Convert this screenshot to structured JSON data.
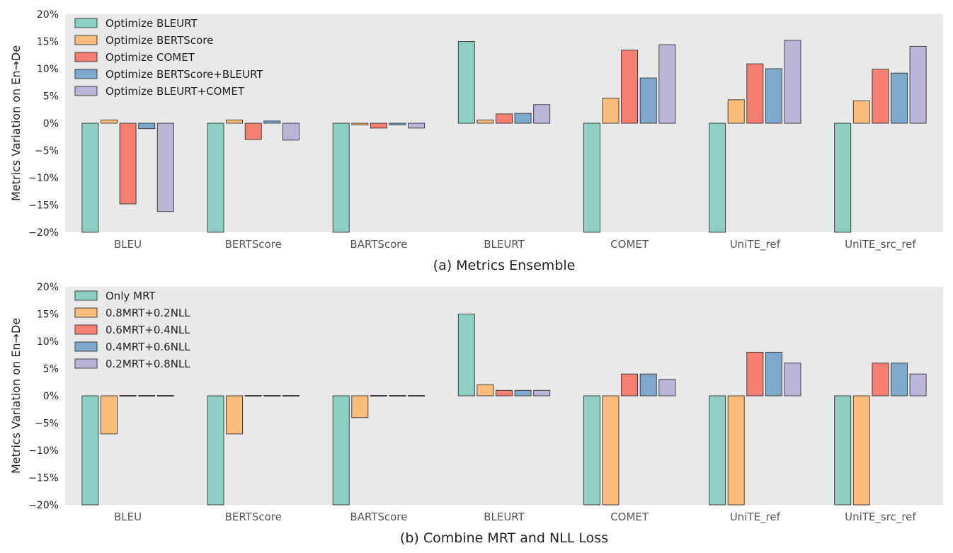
{
  "chart_data": [
    {
      "type": "bar",
      "caption": "(a) Metrics Ensemble",
      "ylabel": "Metrics Variation on En→De",
      "xlabel": "",
      "ylim": [
        -20,
        20
      ],
      "yticks": [
        "−20%",
        "−15%",
        "−10%",
        "−5%",
        "0%",
        "5%",
        "10%",
        "15%",
        "20%"
      ],
      "categories": [
        "BLEU",
        "BERTScore",
        "BARTScore",
        "BLEURT",
        "COMET",
        "UniTE_ref",
        "UniTE_src_ref"
      ],
      "legend_position": "top-left",
      "grid": false,
      "series": [
        {
          "name": "Optimize BLEURT",
          "color": "#8fd0c4",
          "values": [
            -20,
            -20,
            -20,
            15,
            -20,
            -20,
            -20
          ]
        },
        {
          "name": "Optimize BERTScore",
          "color": "#fdbe7d",
          "values": [
            0.6,
            0.6,
            -0.3,
            0.6,
            4.6,
            4.3,
            4.1
          ]
        },
        {
          "name": "Optimize COMET",
          "color": "#f47f72",
          "values": [
            -14.8,
            -3.0,
            -0.9,
            1.7,
            13.4,
            10.9,
            9.9
          ]
        },
        {
          "name": "Optimize BERTScore+BLEURT",
          "color": "#7fa9cc",
          "values": [
            -1.0,
            0.4,
            -0.3,
            1.8,
            8.3,
            10.0,
            9.2
          ]
        },
        {
          "name": "Optimize BLEURT+COMET",
          "color": "#bab6d8",
          "values": [
            -16.2,
            -3.1,
            -0.9,
            3.4,
            14.4,
            15.2,
            14.1
          ]
        }
      ]
    },
    {
      "type": "bar",
      "caption": "(b) Combine MRT and NLL Loss",
      "ylabel": "Metrics Variation on En→De",
      "xlabel": "",
      "ylim": [
        -20,
        20
      ],
      "yticks": [
        "−20%",
        "−15%",
        "−10%",
        "−5%",
        "0%",
        "5%",
        "10%",
        "15%",
        "20%"
      ],
      "categories": [
        "BLEU",
        "BERTScore",
        "BARTScore",
        "BLEURT",
        "COMET",
        "UniTE_ref",
        "UniTE_src_ref"
      ],
      "legend_position": "top-left",
      "grid": false,
      "series": [
        {
          "name": "Only MRT",
          "color": "#8fd0c4",
          "values": [
            -20,
            -20,
            -20,
            15,
            -20,
            -20,
            -20
          ]
        },
        {
          "name": "0.8MRT+0.2NLL",
          "color": "#fdbe7d",
          "values": [
            -7,
            -7,
            -4,
            2,
            -20,
            -20,
            -20
          ]
        },
        {
          "name": "0.6MRT+0.4NLL",
          "color": "#f47f72",
          "values": [
            0,
            0,
            0,
            1,
            4,
            8,
            6
          ]
        },
        {
          "name": "0.4MRT+0.6NLL",
          "color": "#7fa9cc",
          "values": [
            0,
            0,
            0,
            1,
            4,
            8,
            6
          ]
        },
        {
          "name": "0.2MRT+0.8NLL",
          "color": "#bab6d8",
          "values": [
            0,
            0,
            0,
            1,
            3,
            6,
            4
          ]
        }
      ]
    }
  ]
}
